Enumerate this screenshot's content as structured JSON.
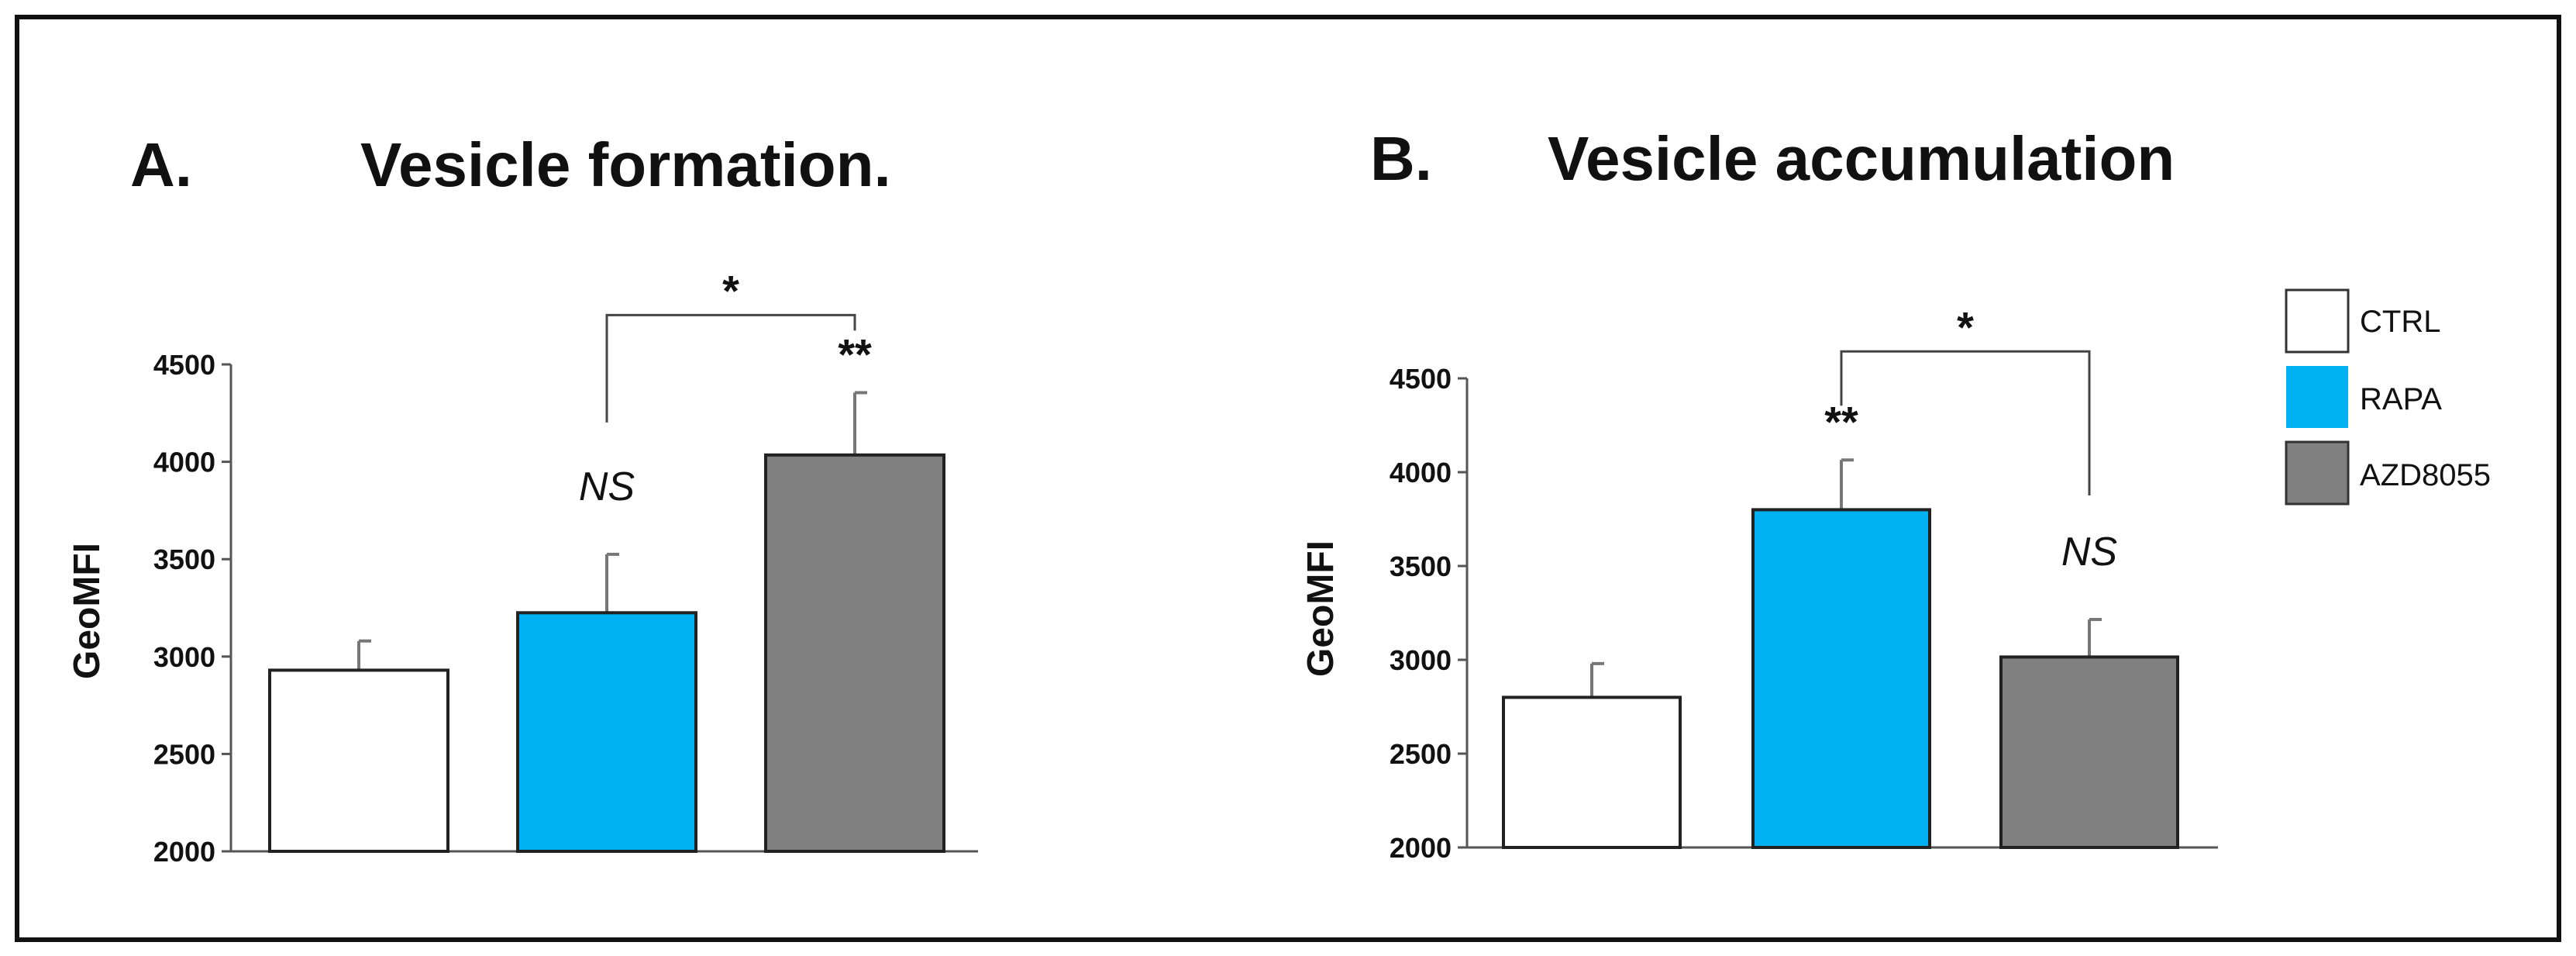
{
  "chart_data": [
    {
      "type": "bar",
      "panel_label": "A.",
      "title": "Vesicle formation.",
      "ylabel": "GeoMFI",
      "xlabel": "",
      "ylim": [
        2000,
        4500
      ],
      "yticks": [
        2000,
        2500,
        3000,
        3500,
        4000,
        4500
      ],
      "categories": [
        "CTRL",
        "RAPA",
        "AZD8055"
      ],
      "values": [
        2930,
        3225,
        4035
      ],
      "errors": [
        150,
        300,
        320
      ],
      "colors": [
        "#ffffff",
        "#00b0f0",
        "#808080"
      ],
      "annotations": [
        {
          "bar": 1,
          "text": "NS",
          "style": "italic"
        },
        {
          "bar": 2,
          "text": "**",
          "style": "bold"
        }
      ],
      "bracket": {
        "from": 1,
        "to": 2,
        "label": "*"
      }
    },
    {
      "type": "bar",
      "panel_label": "B.",
      "title": "Vesicle accumulation",
      "ylabel": "GeoMFI",
      "xlabel": "",
      "ylim": [
        2000,
        4500
      ],
      "yticks": [
        2000,
        2500,
        3000,
        3500,
        4000,
        4500
      ],
      "categories": [
        "CTRL",
        "RAPA",
        "AZD8055"
      ],
      "values": [
        2800,
        3800,
        3015
      ],
      "errors": [
        180,
        265,
        200
      ],
      "colors": [
        "#ffffff",
        "#00b0f0",
        "#808080"
      ],
      "annotations": [
        {
          "bar": 1,
          "text": "**",
          "style": "bold"
        },
        {
          "bar": 2,
          "text": "NS",
          "style": "italic"
        }
      ],
      "bracket": {
        "from": 1,
        "to": 2,
        "label": "*"
      }
    }
  ],
  "legend": [
    {
      "label": "CTRL",
      "color": "#ffffff"
    },
    {
      "label": "RAPA",
      "color": "#00b0f0"
    },
    {
      "label": "AZD8055",
      "color": "#808080"
    }
  ]
}
